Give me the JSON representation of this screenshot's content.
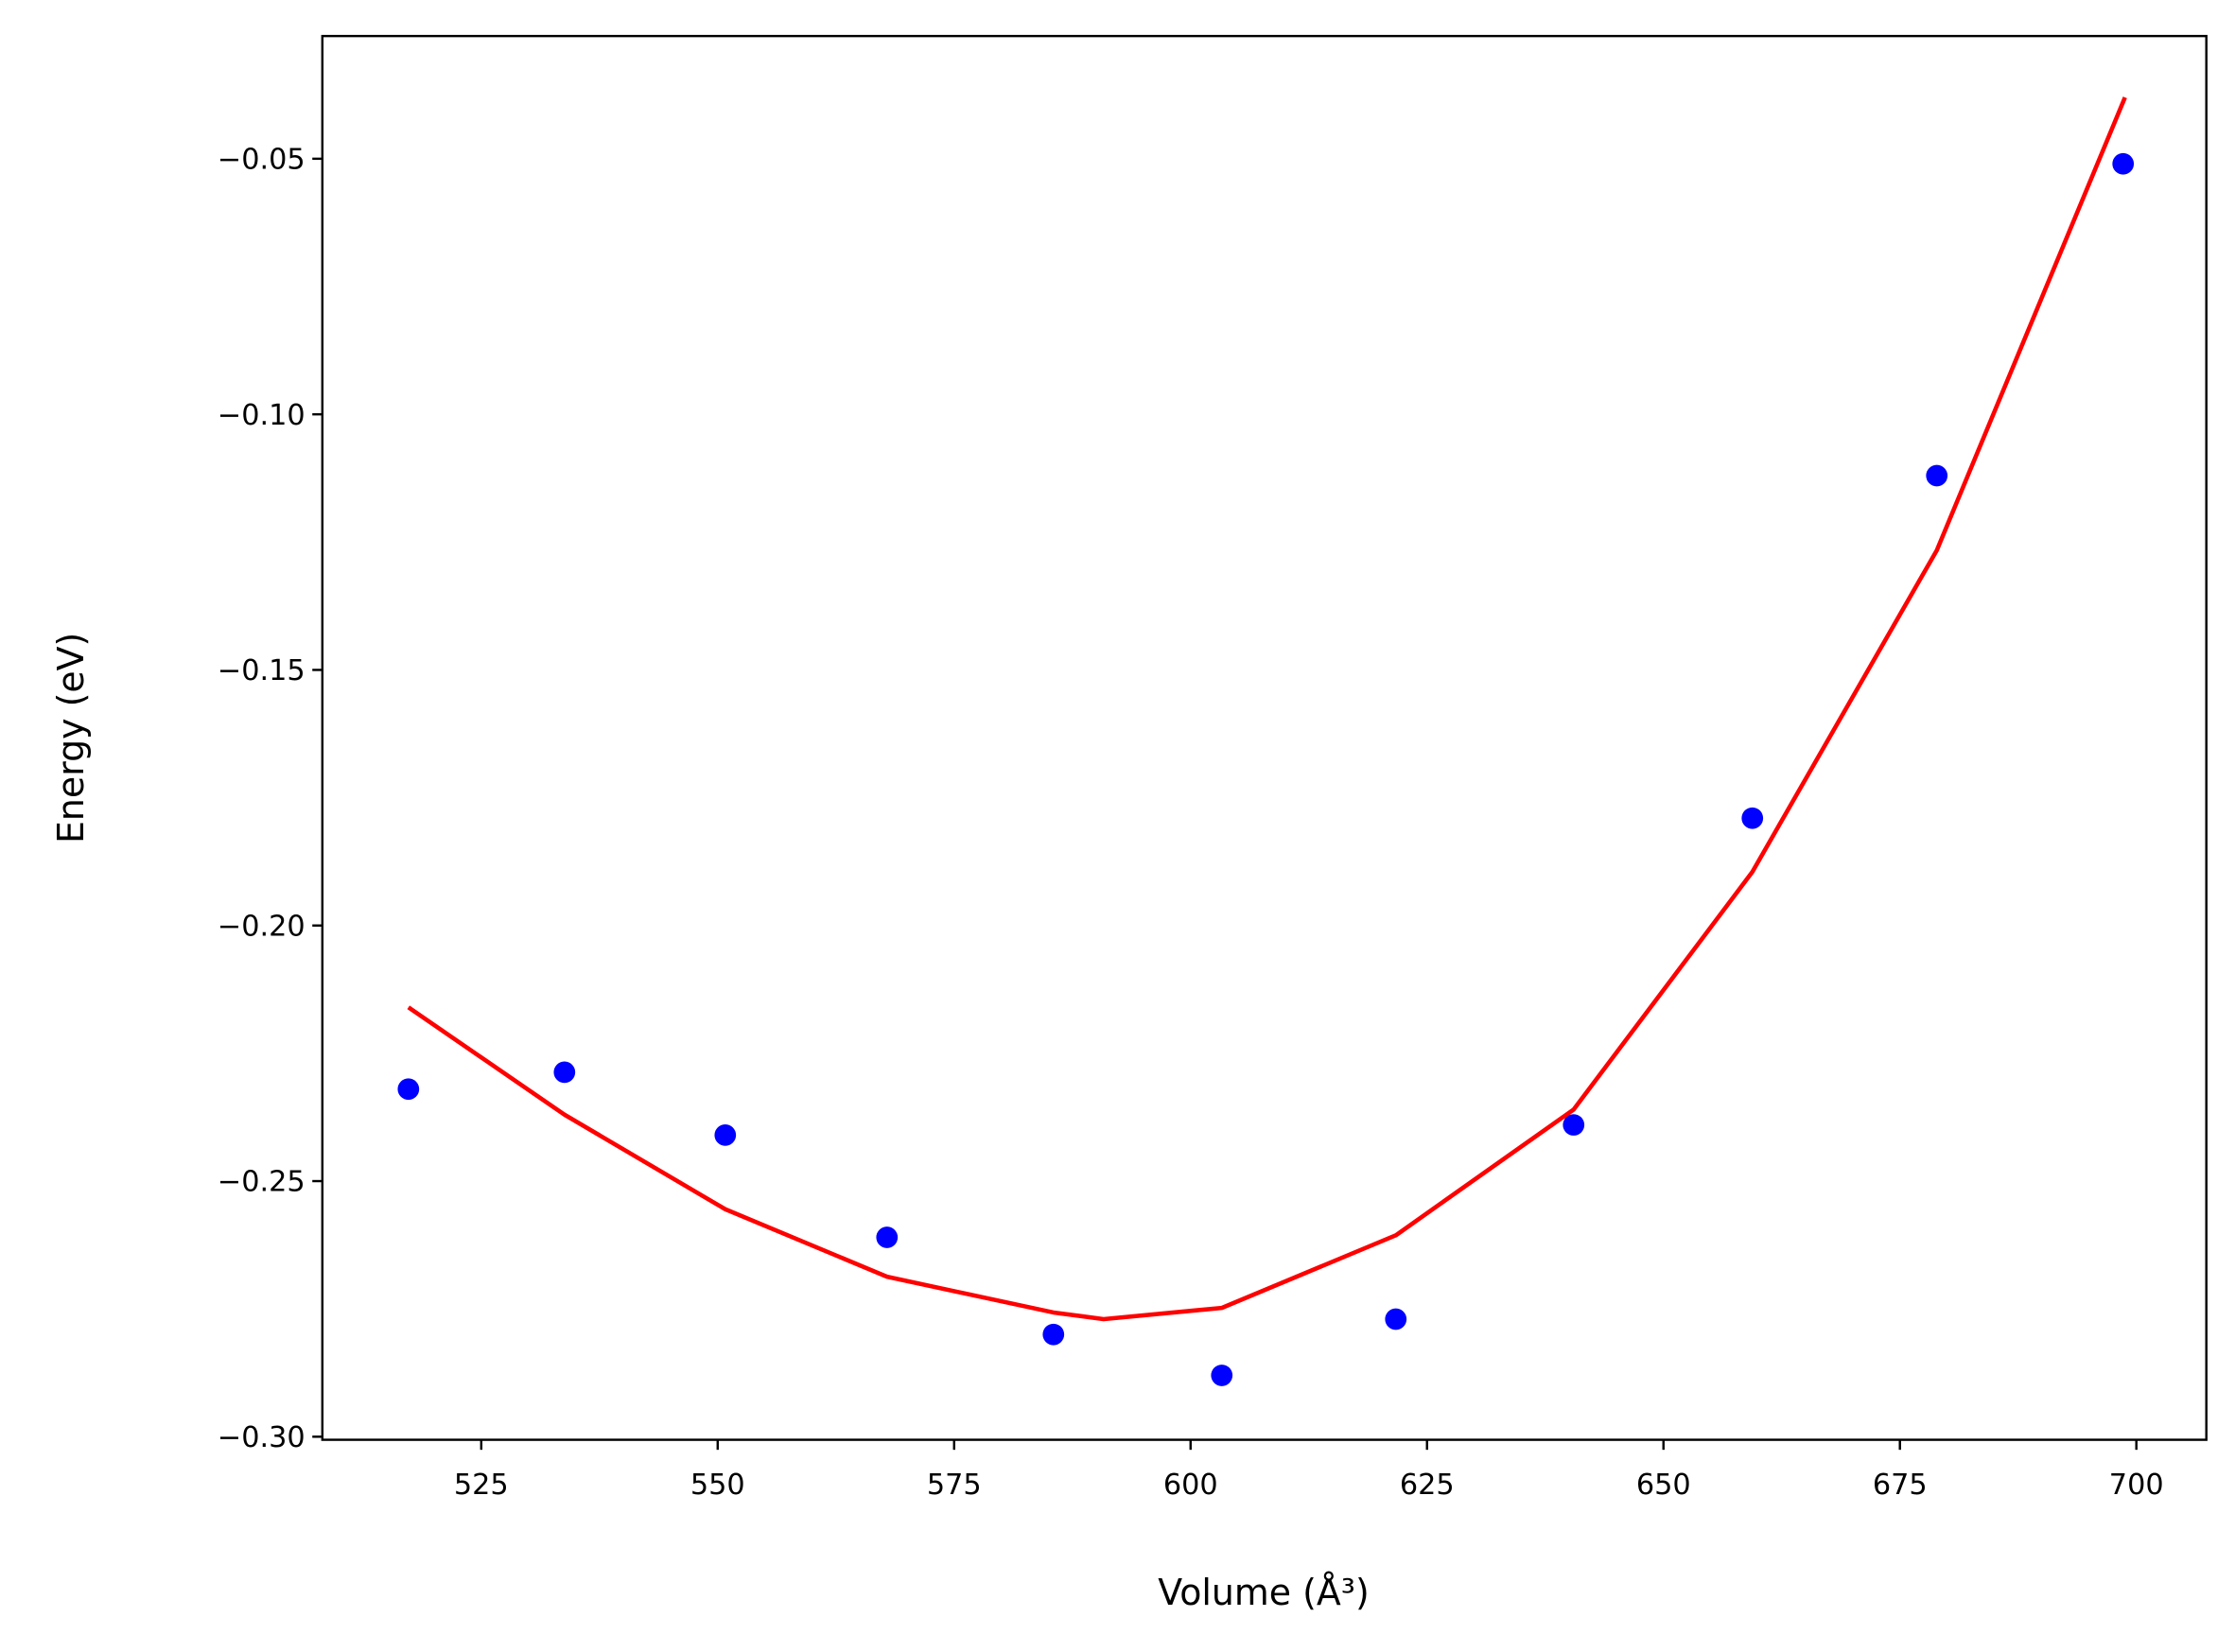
{
  "chart_data": {
    "type": "scatter",
    "xlabel": "Volume (Å³)",
    "ylabel": "Energy (eV)",
    "xlim": [
      508.2,
      707.4
    ],
    "ylim": [
      -0.3006,
      -0.026
    ],
    "xticks": [
      525,
      550,
      575,
      600,
      625,
      650,
      675,
      700
    ],
    "yticks": [
      {
        "value": -0.3,
        "label": "−0.30"
      },
      {
        "value": -0.25,
        "label": "−0.25"
      },
      {
        "value": -0.2,
        "label": "−0.20"
      },
      {
        "value": -0.15,
        "label": "−0.15"
      },
      {
        "value": -0.1,
        "label": "−0.10"
      },
      {
        "value": -0.05,
        "label": "−0.05"
      }
    ],
    "grid": false,
    "series": [
      {
        "mode": "markers",
        "color": "#0000ff",
        "x": [
          517.3,
          533.8,
          550.8,
          567.9,
          585.5,
          603.3,
          621.7,
          640.5,
          659.4,
          678.9,
          698.6
        ],
        "values": [
          -0.232,
          -0.2287,
          -0.241,
          -0.261,
          -0.28,
          -0.288,
          -0.277,
          -0.239,
          -0.179,
          -0.112,
          -0.051
        ]
      },
      {
        "mode": "line",
        "color": "#ff0000",
        "x": [
          517.3,
          533.8,
          550.8,
          567.9,
          585.5,
          590.8,
          603.3,
          621.7,
          640.5,
          659.4,
          678.9,
          698.8
        ],
        "values": [
          -0.216,
          -0.237,
          -0.2555,
          -0.2687,
          -0.2757,
          -0.277,
          -0.2748,
          -0.2606,
          -0.236,
          -0.1895,
          -0.1266,
          -0.038
        ]
      }
    ]
  }
}
